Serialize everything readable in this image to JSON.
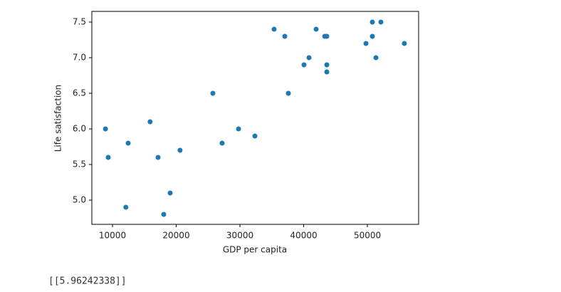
{
  "chart_data": {
    "type": "scatter",
    "x_label": "GDP per capita",
    "y_label": "Life satisfaction",
    "x": [
      8900,
      9330,
      12100,
      12460,
      15900,
      17150,
      18040,
      19050,
      20600,
      25750,
      27200,
      29780,
      32350,
      35360,
      37040,
      37600,
      40050,
      40840,
      41960,
      43300,
      43630,
      43630,
      43630,
      49780,
      50780,
      50780,
      51340,
      52120,
      55800
    ],
    "values": [
      6.0,
      5.6,
      4.9,
      5.8,
      6.1,
      5.6,
      4.8,
      5.1,
      5.7,
      6.5,
      5.8,
      6.0,
      5.9,
      7.4,
      7.3,
      6.5,
      6.9,
      7.0,
      7.4,
      7.3,
      7.3,
      6.9,
      6.8,
      7.2,
      7.5,
      7.3,
      7.0,
      7.5,
      7.2
    ],
    "color": "#1f77b4",
    "xlim": [
      6760,
      58040
    ],
    "ylim": [
      4.66,
      7.65
    ],
    "xticks": [
      10000,
      20000,
      30000,
      40000,
      50000
    ],
    "yticks": [
      {
        "value": 5,
        "label": "5.0"
      },
      5.5,
      {
        "value": 6,
        "label": "6.0"
      },
      6.5,
      {
        "value": 7,
        "label": "7.0"
      },
      7.5
    ]
  },
  "output_text": "[[5.96242338]]"
}
